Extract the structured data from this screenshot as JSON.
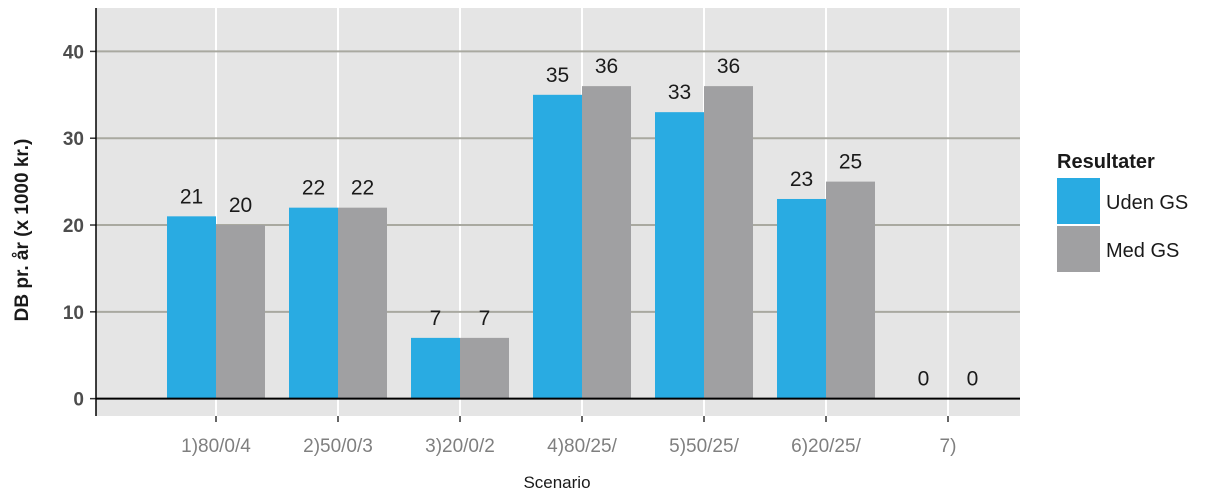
{
  "chart_data": {
    "type": "bar",
    "title": "",
    "xlabel": "Scenario",
    "ylabel": "DB pr. år (x 1000 kr.)",
    "categories": [
      "1)80/0/4",
      "2)50/0/3",
      "3)20/0/2",
      "4)80/25/",
      "5)50/25/",
      "6)20/25/",
      "7)"
    ],
    "series": [
      {
        "name": "Uden GS",
        "color": "#29abe2",
        "values": [
          21,
          22,
          7,
          35,
          33,
          23,
          0
        ]
      },
      {
        "name": "Med GS",
        "color": "#a0a0a2",
        "values": [
          20,
          22,
          7,
          36,
          36,
          25,
          0
        ]
      }
    ],
    "ylim": [
      -2,
      45
    ],
    "yticks": [
      0,
      10,
      20,
      30,
      40
    ],
    "grid": true,
    "panel_color": "#e5e5e5",
    "gridline_color": "#a9a9a0",
    "legend": {
      "title": "Resultater",
      "position": "right"
    }
  }
}
